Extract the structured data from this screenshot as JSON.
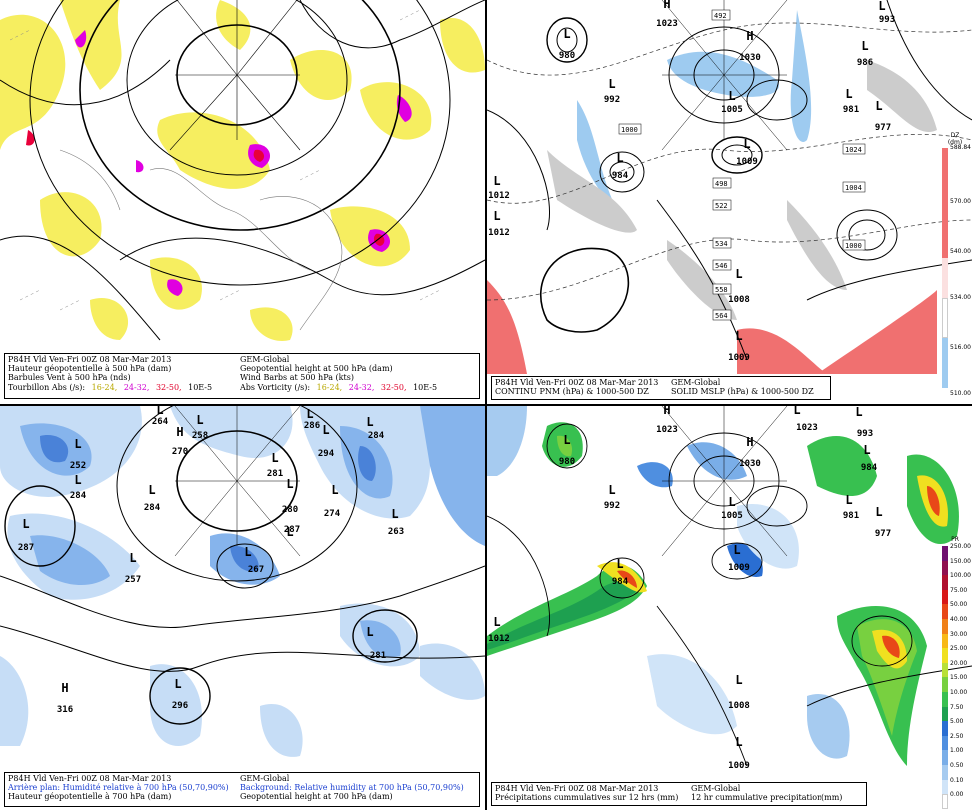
{
  "panels": {
    "p1": {
      "caption": {
        "header_left": "P84H Vld Ven-Fri 00Z 08 Mar-Mar 2013",
        "header_right": "GEM-Global",
        "line1_left": "Hauteur géopotentielle à 500 hPa (dam)",
        "line1_right": "Geopotential height at 500 hPa (dam)",
        "line2_left": "Barbules Vent à 500 hPa (nds)",
        "line2_right": "Wind Barbs at 500 hPa (kts)",
        "line3_left_label": "Tourbillon Abs (/s):",
        "line3_right_label": "Abs Vorticity (/s):",
        "thresholds": [
          "16-24,",
          "24-32,",
          "32-50,",
          "10E-5"
        ]
      }
    },
    "p2": {
      "caption": {
        "header_left": "P84H Vld Ven-Fri 00Z 08 Mar-Mar 2013",
        "header_right": "GEM-Global",
        "line1_left": "CONTINU PNM (hPa) & 1000-500 DZ",
        "line1_right": "SOLID MSLP (hPa) & 1000-500 DZ"
      },
      "legend": {
        "unit1": "DZ",
        "unit2": "(dm)",
        "labels": [
          "588.84",
          "570.00",
          "540.00",
          "534.00",
          "516.00",
          "510.00"
        ]
      },
      "centers": [
        {
          "sym": "L",
          "val": "980"
        },
        {
          "sym": "H",
          "val": "1023"
        },
        {
          "sym": "H",
          "val": "1030"
        },
        {
          "sym": "L",
          "val": "992"
        },
        {
          "sym": "L",
          "val": "1005"
        },
        {
          "sym": "L",
          "val": "1009"
        },
        {
          "sym": "L",
          "val": "984"
        },
        {
          "sym": "L",
          "val": "1012"
        },
        {
          "sym": "L",
          "val": "1012"
        },
        {
          "sym": "L",
          "val": "1008"
        },
        {
          "sym": "L",
          "val": "1009"
        },
        {
          "sym": "L",
          "val": "993"
        },
        {
          "sym": "L",
          "val": "986"
        },
        {
          "sym": "L",
          "val": "981"
        },
        {
          "sym": "L",
          "val": "977"
        }
      ],
      "contour_labels": [
        "492",
        "1000",
        "1024",
        "1004",
        "1000",
        "498",
        "522",
        "534",
        "546",
        "558",
        "564"
      ]
    },
    "p3": {
      "caption": {
        "header_left": "P84H Vld Ven-Fri 00Z 08 Mar-Mar 2013",
        "header_right": "GEM-Global",
        "line1_left": "Arrière plan: Humidité relative à 700 hPa (50,70,90%)",
        "line1_right": "Background: Relative humidity at 700 hPa (50,70,90%)",
        "line2_left": "Hauteur géopotentielle à 700 hPa (dam)",
        "line2_right": "Geopotential height at 700 hPa (dam)"
      },
      "centers": [
        {
          "sym": "L",
          "val": "264"
        },
        {
          "sym": "H",
          "val": "270"
        },
        {
          "sym": "L",
          "val": "258"
        },
        {
          "sym": "L",
          "val": "252"
        },
        {
          "sym": "L",
          "val": "284"
        },
        {
          "sym": "L",
          "val": "284"
        },
        {
          "sym": "L",
          "val": "287"
        },
        {
          "sym": "L",
          "val": "257"
        },
        {
          "sym": "L",
          "val": "281"
        },
        {
          "sym": "L",
          "val": "280"
        },
        {
          "sym": "L",
          "val": "267"
        },
        {
          "sym": "L",
          "val": "286"
        },
        {
          "sym": "L",
          "val": "294"
        },
        {
          "sym": "L",
          "val": "274"
        },
        {
          "sym": "L",
          "val": "284"
        },
        {
          "sym": "L",
          "val": "263"
        },
        {
          "sym": "L",
          "val": "281"
        },
        {
          "sym": "L",
          "val": "296"
        },
        {
          "sym": "H",
          "val": "316"
        },
        {
          "sym": "L",
          "val": "287"
        }
      ]
    },
    "p4": {
      "caption": {
        "header_left": "P84H Vld Ven-Fri 00Z 08 Mar-Mar 2013",
        "header_right": "GEM-Global",
        "line1_left": "Précipitations cummulatives sur 12 hrs (mm)",
        "line1_right": "12 hr cummulative precipitation",
        "line1_unit": "(mm)"
      },
      "legend": {
        "unit": "PR",
        "labels": [
          "250.00",
          "150.00",
          "100.00",
          "75.00",
          "50.00",
          "40.00",
          "30.00",
          "25.00",
          "20.00",
          "15.00",
          "10.00",
          "7.50",
          "5.00",
          "2.50",
          "1.00",
          "0.50",
          "0.10",
          "0.00"
        ]
      },
      "centers": [
        {
          "sym": "H",
          "val": "1023"
        },
        {
          "sym": "H",
          "val": "1030"
        },
        {
          "sym": "L",
          "val": "980"
        },
        {
          "sym": "L",
          "val": "992"
        },
        {
          "sym": "L",
          "val": "1005"
        },
        {
          "sym": "L",
          "val": "1009"
        },
        {
          "sym": "L",
          "val": "984"
        },
        {
          "sym": "L",
          "val": "1012"
        },
        {
          "sym": "L",
          "val": "1008"
        },
        {
          "sym": "L",
          "val": "1009"
        },
        {
          "sym": "L",
          "val": "1023"
        },
        {
          "sym": "L",
          "val": "993"
        },
        {
          "sym": "L",
          "val": "984"
        },
        {
          "sym": "L",
          "val": "981"
        },
        {
          "sym": "L",
          "val": "977"
        }
      ]
    }
  },
  "colors": {
    "vort_low": "#d4c000",
    "vort_mid": "#e000e0",
    "vort_high": "#e8003a",
    "thickness_warm": "#f07070",
    "thickness_cold": "#9ecbf0",
    "rh_50": "#c6ddf6",
    "rh_70": "#86b4ec",
    "rh_90": "#4a82d8",
    "precip": [
      "#ffffff",
      "#d0e4f8",
      "#a6cbf0",
      "#7aaee8",
      "#4f8fe0",
      "#2a6ed2",
      "#1ea050",
      "#38c050",
      "#78d040",
      "#b8e038",
      "#f0e020",
      "#f8b818",
      "#f08018",
      "#e84818",
      "#d81818",
      "#b01030",
      "#901050",
      "#701070"
    ]
  }
}
